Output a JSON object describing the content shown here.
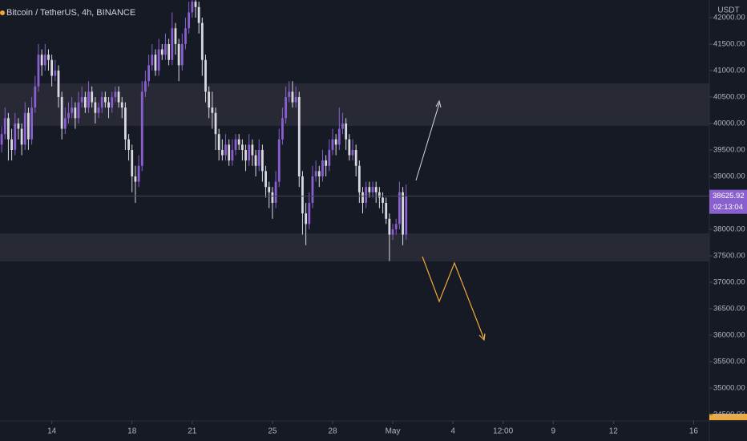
{
  "chart_data": {
    "type": "candlestick",
    "title": "Bitcoin / TetherUS, 4h, BINANCE",
    "currency": "USDT",
    "up_color": "#8a5fd0",
    "down_color": "#d9d9e0",
    "xlim": [
      -0.5,
      211.7
    ],
    "xticks": [
      {
        "value": 15,
        "label": "14"
      },
      {
        "value": 39,
        "label": "18"
      },
      {
        "value": 57,
        "label": "21"
      },
      {
        "value": 81,
        "label": "25"
      },
      {
        "value": 99,
        "label": "28"
      },
      {
        "value": 117,
        "label": "May"
      },
      {
        "value": 135,
        "label": "4"
      },
      {
        "value": 150,
        "label": "12:00"
      },
      {
        "value": 165,
        "label": "9"
      },
      {
        "value": 183,
        "label": "12"
      },
      {
        "value": 207,
        "label": "16"
      }
    ],
    "ylim": [
      34379,
      42333
    ],
    "yticks": [
      {
        "value": 34500,
        "label": "34500.00"
      },
      {
        "value": 35000,
        "label": "35000.00"
      },
      {
        "value": 35500,
        "label": "35500.00"
      },
      {
        "value": 36000,
        "label": "36000.00"
      },
      {
        "value": 36500,
        "label": "36500.00"
      },
      {
        "value": 37000,
        "label": "37000.00"
      },
      {
        "value": 37500,
        "label": "37500.00"
      },
      {
        "value": 38000,
        "label": "38000.00"
      },
      {
        "value": 38500,
        "label": "38500.00"
      },
      {
        "value": 39000,
        "label": "39000.00"
      },
      {
        "value": 39500,
        "label": "39500.00"
      },
      {
        "value": 40000,
        "label": "40000.00"
      },
      {
        "value": 40500,
        "label": "40500.00"
      },
      {
        "value": 41000,
        "label": "41000.00"
      },
      {
        "value": 41500,
        "label": "41500.00"
      },
      {
        "value": 42000,
        "label": "42000.00"
      }
    ],
    "last_price": 38625.92,
    "countdown": "02:13:04",
    "x": [
      0,
      1,
      2,
      3,
      4,
      5,
      6,
      7,
      8,
      9,
      10,
      11,
      12,
      13,
      14,
      15,
      16,
      17,
      18,
      19,
      20,
      21,
      22,
      23,
      24,
      25,
      26,
      27,
      28,
      29,
      30,
      31,
      32,
      33,
      34,
      35,
      36,
      37,
      38,
      39,
      40,
      41,
      42,
      43,
      44,
      45,
      46,
      47,
      48,
      49,
      50,
      51,
      52,
      53,
      54,
      55,
      56,
      57,
      58,
      59,
      60,
      61,
      62,
      63,
      64,
      65,
      66,
      67,
      68,
      69,
      70,
      71,
      72,
      73,
      74,
      75,
      76,
      77,
      78,
      79,
      80,
      81,
      82,
      83,
      84,
      85,
      86,
      87,
      88,
      89,
      90,
      91,
      92,
      93,
      94,
      95,
      96,
      97,
      98,
      99,
      100,
      101,
      102,
      103,
      104,
      105,
      106,
      107,
      108,
      109,
      110,
      111,
      112,
      113,
      114,
      115,
      116,
      117,
      118,
      119,
      120,
      121
    ],
    "open": [
      39600,
      39800,
      40100,
      39700,
      39500,
      40000,
      39900,
      39600,
      40200,
      39700,
      40300,
      40700,
      41300,
      41100,
      41300,
      41200,
      40900,
      41000,
      40500,
      39900,
      40100,
      40200,
      40300,
      40100,
      40400,
      40500,
      40300,
      40600,
      40400,
      40200,
      40300,
      40500,
      40400,
      40300,
      40500,
      40600,
      40400,
      40300,
      39700,
      39500,
      39000,
      38900,
      39200,
      40600,
      40800,
      41100,
      41300,
      41000,
      41400,
      41300,
      41500,
      41200,
      41800,
      41500,
      41100,
      41500,
      41800,
      42100,
      42300,
      42200,
      41900,
      41200,
      40600,
      40300,
      40200,
      39800,
      39500,
      39400,
      39600,
      39300,
      39500,
      39700,
      39600,
      39500,
      39300,
      39600,
      39400,
      39200,
      39500,
      39100,
      38800,
      38700,
      38500,
      38900,
      39700,
      40100,
      40500,
      40600,
      40400,
      40500,
      39000,
      38300,
      38100,
      38500,
      39000,
      39100,
      39000,
      39300,
      39200,
      39500,
      39700,
      39600,
      39900,
      40000,
      39700,
      39400,
      39500,
      39200,
      38700,
      38500,
      38800,
      38700,
      38800,
      38700,
      38600,
      38500,
      38200,
      37900,
      38000,
      38100,
      38700,
      37900
    ],
    "high": [
      39950,
      40300,
      40200,
      39900,
      40200,
      40100,
      40000,
      40400,
      40300,
      40500,
      40900,
      41500,
      41400,
      41500,
      41400,
      41300,
      41200,
      41100,
      40600,
      40300,
      40400,
      40500,
      40400,
      40600,
      40700,
      40600,
      40800,
      40700,
      40500,
      40400,
      40600,
      40600,
      40500,
      40600,
      40700,
      40700,
      40500,
      40400,
      39800,
      39600,
      39200,
      39400,
      40800,
      41000,
      41300,
      41500,
      41400,
      41600,
      41500,
      41700,
      41600,
      42100,
      41900,
      41600,
      41700,
      42000,
      42300,
      42450,
      42400,
      42300,
      42000,
      41300,
      40700,
      40600,
      40300,
      39900,
      39700,
      39800,
      39700,
      39700,
      39800,
      39800,
      39700,
      39600,
      39800,
      39700,
      39500,
      39700,
      39600,
      39200,
      38900,
      38800,
      39100,
      39900,
      40300,
      40700,
      40800,
      40800,
      40700,
      40600,
      39100,
      38500,
      38700,
      39200,
      39300,
      39200,
      39500,
      39400,
      39700,
      39900,
      39800,
      40300,
      40200,
      40100,
      39800,
      39700,
      39600,
      39300,
      38800,
      38900,
      38900,
      38900,
      38900,
      38800,
      38700,
      38600,
      38300,
      38100,
      38200,
      38900,
      38800,
      38850
    ],
    "low": [
      39450,
      39700,
      39300,
      39300,
      39400,
      39700,
      39400,
      39500,
      39500,
      39600,
      40200,
      40600,
      40900,
      41000,
      41000,
      40700,
      40800,
      40300,
      39700,
      39800,
      40000,
      40100,
      39900,
      40000,
      40300,
      40200,
      40200,
      40300,
      40000,
      40100,
      40200,
      40300,
      40100,
      40200,
      40400,
      40300,
      40100,
      39500,
      39300,
      38700,
      38500,
      38800,
      39100,
      40500,
      40700,
      41000,
      40900,
      40900,
      41200,
      41200,
      41100,
      41100,
      41300,
      40800,
      41000,
      41400,
      41700,
      42000,
      42000,
      41700,
      40900,
      40400,
      40100,
      39900,
      39500,
      39300,
      39300,
      39300,
      39200,
      39200,
      39400,
      39500,
      39300,
      39100,
      39200,
      39200,
      39000,
      39100,
      38900,
      38600,
      38400,
      38200,
      38400,
      38800,
      39600,
      40000,
      40400,
      40300,
      40300,
      38800,
      37900,
      37700,
      38000,
      38400,
      38900,
      38800,
      38900,
      39000,
      39100,
      39400,
      39400,
      39500,
      39800,
      39500,
      39300,
      39300,
      39000,
      38500,
      38300,
      38400,
      38600,
      38600,
      38500,
      38400,
      38300,
      38100,
      37400,
      37800,
      37900,
      38000,
      37700,
      37800
    ],
    "close": [
      39800,
      40100,
      39700,
      39500,
      40000,
      39900,
      39600,
      40200,
      39700,
      40300,
      40700,
      41300,
      41100,
      41300,
      41200,
      40900,
      41000,
      40500,
      39900,
      40100,
      40200,
      40300,
      40100,
      40400,
      40500,
      40300,
      40600,
      40400,
      40200,
      40300,
      40500,
      40400,
      40300,
      40500,
      40600,
      40400,
      40300,
      39700,
      39500,
      39000,
      38900,
      39200,
      40600,
      40800,
      41100,
      41300,
      41000,
      41400,
      41300,
      41500,
      41200,
      41800,
      41500,
      41100,
      41500,
      41800,
      42100,
      42300,
      42200,
      41900,
      41200,
      40600,
      40300,
      40200,
      39800,
      39500,
      39400,
      39600,
      39300,
      39500,
      39700,
      39600,
      39500,
      39300,
      39600,
      39400,
      39200,
      39500,
      39100,
      38800,
      38700,
      38500,
      38900,
      39700,
      40100,
      40500,
      40600,
      40400,
      40500,
      39000,
      38300,
      38100,
      38500,
      39000,
      39100,
      39000,
      39300,
      39200,
      39500,
      39700,
      39600,
      39900,
      40000,
      39700,
      39400,
      39500,
      39200,
      38700,
      38500,
      38800,
      38700,
      38800,
      38700,
      38600,
      38500,
      38200,
      37900,
      38000,
      38100,
      38700,
      37900,
      38625.92
    ]
  }
}
